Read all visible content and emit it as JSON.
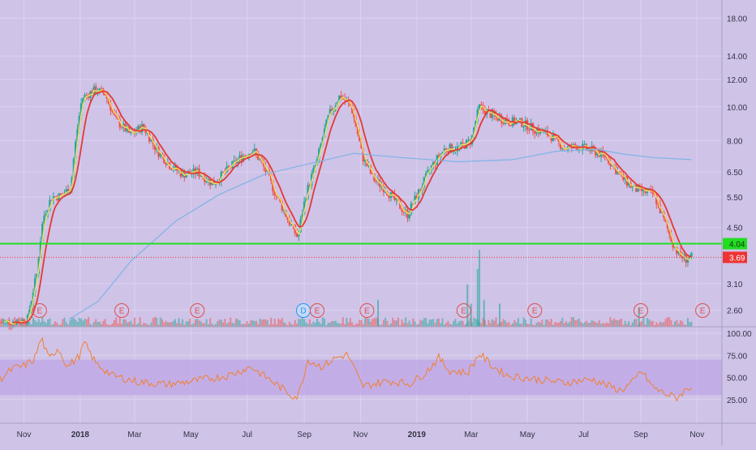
{
  "colors": {
    "background": "#cfc3e8",
    "grid": "#ddd3f0",
    "candle_up": "#26a69a",
    "candle_down": "#ef5350",
    "ma_fast": "#f2e05a",
    "ma_mid": "#e53935",
    "ma_slow": "#7fb3e6",
    "support_line": "#22dd22",
    "last_price": "#ee3333",
    "rsi_line": "#f08030",
    "rsi_band": "#bfa7e6",
    "axis_text": "#333344"
  },
  "price_axis": {
    "scale": "log",
    "ticks": [
      "18.00",
      "14.00",
      "12.00",
      "10.00",
      "8.00",
      "6.50",
      "5.50",
      "4.50",
      "3.10",
      "2.60"
    ],
    "tick_values": [
      18.0,
      14.0,
      12.0,
      10.0,
      8.0,
      6.5,
      5.5,
      4.5,
      3.1,
      2.6
    ],
    "range": [
      2.33,
      20.3
    ]
  },
  "rsi_axis": {
    "ticks": [
      "100.00",
      "75.00",
      "50.00",
      "25.00"
    ],
    "tick_values": [
      100,
      75,
      50,
      25
    ],
    "band": [
      30,
      70
    ]
  },
  "time_axis": {
    "labels": [
      "Nov",
      "2018",
      "Mar",
      "May",
      "Jul",
      "Sep",
      "Nov",
      "2019",
      "Mar",
      "May",
      "Jul",
      "Sep",
      "Nov"
    ],
    "bold": [
      "2018",
      "2019"
    ]
  },
  "markers": {
    "support": {
      "label": "4.04",
      "value": 4.04
    },
    "last_price": {
      "label": "3.69",
      "value": 3.69
    }
  },
  "events": [
    {
      "label": "E",
      "date": "2017-11-18"
    },
    {
      "label": "E",
      "date": "2018-02-15"
    },
    {
      "label": "E",
      "date": "2018-05-08"
    },
    {
      "label": "D",
      "date": "2018-08-31",
      "highlight": true
    },
    {
      "label": "E",
      "date": "2018-09-15"
    },
    {
      "label": "E",
      "date": "2018-11-08"
    },
    {
      "label": "E",
      "date": "2019-02-21"
    },
    {
      "label": "E",
      "date": "2019-05-09"
    },
    {
      "label": "E",
      "date": "2019-09-01"
    },
    {
      "label": "E",
      "date": "2019-11-07"
    }
  ],
  "chart_data": {
    "type": "candlestick",
    "x_scale": "time",
    "x_range": [
      "2017-10-06",
      "2019-11-28"
    ],
    "price_path": [
      [
        "2017-10-06",
        2.4
      ],
      [
        "2017-10-25",
        2.42
      ],
      [
        "2017-11-05",
        2.45
      ],
      [
        "2017-11-15",
        3.3
      ],
      [
        "2017-11-22",
        4.8
      ],
      [
        "2017-12-01",
        5.5
      ],
      [
        "2017-12-12",
        5.55
      ],
      [
        "2017-12-22",
        5.9
      ],
      [
        "2018-01-03",
        10.6
      ],
      [
        "2018-01-17",
        11.2
      ],
      [
        "2018-01-28",
        10.9
      ],
      [
        "2018-02-08",
        9.2
      ],
      [
        "2018-02-25",
        8.3
      ],
      [
        "2018-03-10",
        8.8
      ],
      [
        "2018-03-25",
        7.5
      ],
      [
        "2018-04-08",
        6.8
      ],
      [
        "2018-04-22",
        6.4
      ],
      [
        "2018-05-08",
        6.5
      ],
      [
        "2018-05-25",
        6.0
      ],
      [
        "2018-06-10",
        6.6
      ],
      [
        "2018-06-25",
        7.2
      ],
      [
        "2018-07-08",
        7.5
      ],
      [
        "2018-07-18",
        6.8
      ],
      [
        "2018-08-01",
        5.6
      ],
      [
        "2018-08-15",
        4.7
      ],
      [
        "2018-08-25",
        4.2
      ],
      [
        "2018-09-03",
        5.6
      ],
      [
        "2018-09-15",
        7.0
      ],
      [
        "2018-09-28",
        9.5
      ],
      [
        "2018-10-10",
        10.8
      ],
      [
        "2018-10-22",
        10.0
      ],
      [
        "2018-11-03",
        7.2
      ],
      [
        "2018-11-15",
        6.2
      ],
      [
        "2018-11-28",
        5.8
      ],
      [
        "2018-12-10",
        5.3
      ],
      [
        "2018-12-22",
        4.9
      ],
      [
        "2019-01-05",
        5.8
      ],
      [
        "2019-01-18",
        6.8
      ],
      [
        "2019-02-01",
        7.6
      ],
      [
        "2019-02-15",
        7.6
      ],
      [
        "2019-03-01",
        8.0
      ],
      [
        "2019-03-10",
        10.0
      ],
      [
        "2019-03-25",
        9.4
      ],
      [
        "2019-04-10",
        9.1
      ],
      [
        "2019-04-25",
        9.0
      ],
      [
        "2019-05-10",
        8.6
      ],
      [
        "2019-05-25",
        8.3
      ],
      [
        "2019-06-10",
        7.6
      ],
      [
        "2019-06-25",
        7.7
      ],
      [
        "2019-07-10",
        7.5
      ],
      [
        "2019-07-25",
        7.2
      ],
      [
        "2019-08-10",
        6.3
      ],
      [
        "2019-08-25",
        5.8
      ],
      [
        "2019-09-05",
        5.7
      ],
      [
        "2019-09-15",
        5.6
      ],
      [
        "2019-09-25",
        4.8
      ],
      [
        "2019-10-05",
        4.1
      ],
      [
        "2019-10-12",
        3.75
      ],
      [
        "2019-10-20",
        3.65
      ],
      [
        "2019-10-26",
        3.69
      ]
    ],
    "volume_spikes": [
      [
        "2018-11-20",
        0.35
      ],
      [
        "2019-02-25",
        0.55
      ],
      [
        "2019-03-01",
        0.3
      ],
      [
        "2019-03-08",
        0.75
      ],
      [
        "2019-03-10",
        1.0
      ],
      [
        "2019-03-15",
        0.35
      ],
      [
        "2019-04-01",
        0.3
      ],
      [
        "2019-08-30",
        0.25
      ]
    ],
    "rsi_path": [
      [
        "2017-10-06",
        48
      ],
      [
        "2017-10-20",
        60
      ],
      [
        "2017-11-01",
        63
      ],
      [
        "2017-11-12",
        70
      ],
      [
        "2017-11-20",
        95
      ],
      [
        "2017-11-28",
        70
      ],
      [
        "2017-12-08",
        84
      ],
      [
        "2017-12-18",
        62
      ],
      [
        "2018-01-01",
        75
      ],
      [
        "2018-01-05",
        90
      ],
      [
        "2018-01-18",
        66
      ],
      [
        "2018-02-05",
        52
      ],
      [
        "2018-03-05",
        45
      ],
      [
        "2018-04-05",
        42
      ],
      [
        "2018-05-05",
        46
      ],
      [
        "2018-06-10",
        52
      ],
      [
        "2018-07-05",
        62
      ],
      [
        "2018-07-25",
        48
      ],
      [
        "2018-08-18",
        30
      ],
      [
        "2018-08-25",
        28
      ],
      [
        "2018-09-05",
        70
      ],
      [
        "2018-09-20",
        62
      ],
      [
        "2018-10-05",
        72
      ],
      [
        "2018-10-18",
        76
      ],
      [
        "2018-11-03",
        40
      ],
      [
        "2018-12-01",
        46
      ],
      [
        "2018-12-25",
        43
      ],
      [
        "2019-01-10",
        55
      ],
      [
        "2019-01-25",
        72
      ],
      [
        "2019-02-05",
        58
      ],
      [
        "2019-02-25",
        55
      ],
      [
        "2019-03-10",
        77
      ],
      [
        "2019-03-25",
        62
      ],
      [
        "2019-04-10",
        52
      ],
      [
        "2019-05-10",
        48
      ],
      [
        "2019-06-10",
        44
      ],
      [
        "2019-07-10",
        48
      ],
      [
        "2019-08-10",
        35
      ],
      [
        "2019-08-25",
        46
      ],
      [
        "2019-09-01",
        58
      ],
      [
        "2019-09-15",
        38
      ],
      [
        "2019-10-01",
        30
      ],
      [
        "2019-10-10",
        27
      ],
      [
        "2019-10-20",
        36
      ],
      [
        "2019-10-26",
        40
      ]
    ],
    "ma_slow_path": [
      [
        "2017-12-20",
        2.45
      ],
      [
        "2018-01-20",
        2.75
      ],
      [
        "2018-02-25",
        3.6
      ],
      [
        "2018-04-15",
        4.7
      ],
      [
        "2018-06-01",
        5.6
      ],
      [
        "2018-07-20",
        6.4
      ],
      [
        "2018-09-10",
        6.9
      ],
      [
        "2018-10-25",
        7.35
      ],
      [
        "2018-12-15",
        7.15
      ],
      [
        "2019-02-15",
        6.95
      ],
      [
        "2019-04-15",
        7.05
      ],
      [
        "2019-06-01",
        7.45
      ],
      [
        "2019-07-15",
        7.55
      ],
      [
        "2019-08-15",
        7.3
      ],
      [
        "2019-09-15",
        7.15
      ],
      [
        "2019-10-26",
        7.05
      ]
    ]
  }
}
